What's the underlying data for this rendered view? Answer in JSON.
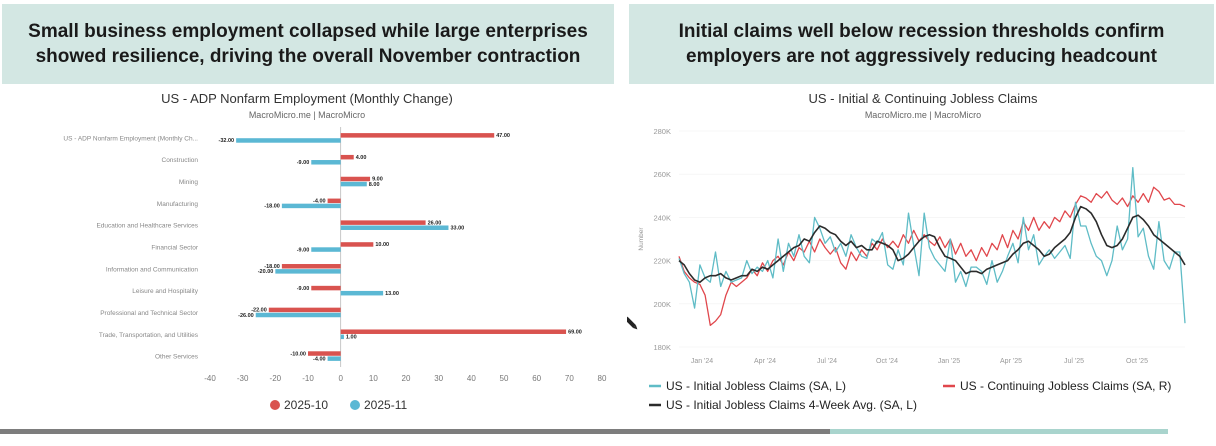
{
  "left": {
    "headline": "Small business employment collapsed while large enterprises\nshowed resilience, driving the overall November contraction",
    "chart_title": "US - ADP Nonfarm Employment (Monthly Change)",
    "source": "MacroMicro.me | MacroMicro"
  },
  "right": {
    "headline": "Initial claims well below recession thresholds confirm\nemployers are not aggressively reducing headcount",
    "chart_title": "US - Initial & Continuing Jobless Claims",
    "source": "MacroMicro.me | MacroMicro"
  },
  "colors": {
    "red": "#d9534f",
    "blue": "#5bb8d4",
    "teal_line": "#5fbcc6",
    "red_line": "#e0474c",
    "dark_line": "#2b2b2b",
    "banner": "#d3e7e3"
  },
  "chart_data": [
    {
      "type": "bar",
      "orientation": "horizontal",
      "title": "US - ADP Nonfarm Employment (Monthly Change)",
      "categories": [
        "US - ADP Nonfarm Employment (Monthly Ch...",
        "Construction",
        "Mining",
        "Manufacturing",
        "Education and Healthcare Services",
        "Financial Sector",
        "Information and Communication",
        "Leisure and Hospitality",
        "Professional and Technical Sector",
        "Trade, Transportation, and Utilities",
        "Other Services"
      ],
      "series": [
        {
          "name": "2025-10",
          "color": "#d9534f",
          "values": [
            47,
            4,
            9,
            -4,
            26,
            10,
            -18,
            -9,
            -22,
            69,
            -10
          ]
        },
        {
          "name": "2025-11",
          "color": "#5bb8d4",
          "values": [
            -32,
            -9,
            8,
            -18,
            33,
            -9,
            -20,
            13,
            -26,
            1,
            -4
          ]
        }
      ],
      "data_labels": [
        [
          "47.00",
          "-32.00"
        ],
        [
          "4.00",
          "-9.00"
        ],
        [
          "9.00",
          "8.00"
        ],
        [
          "-4.00",
          "-18.00"
        ],
        [
          "26.00",
          "33.00"
        ],
        [
          "10.00",
          "-9.00"
        ],
        [
          "-18.00",
          "-20.00"
        ],
        [
          "-9.00",
          "13.00"
        ],
        [
          "-22.00",
          "-26.00"
        ],
        [
          "69.00",
          "1.00"
        ],
        [
          "-10.00",
          "-4.00"
        ]
      ],
      "xlim": [
        -40,
        80
      ],
      "xticks": [
        "-40",
        "-30",
        "-20",
        "-10",
        "0",
        "10",
        "20",
        "30",
        "40",
        "50",
        "60",
        "70",
        "80"
      ],
      "legend_position": "bottom",
      "legend": [
        "2025-10",
        "2025-11"
      ]
    },
    {
      "type": "line",
      "title": "US - Initial & Continuing Jobless Claims",
      "ylabel": "Number",
      "y_left_ticks": [
        "180K",
        "200K",
        "220K",
        "240K",
        "260K",
        "280K"
      ],
      "ylim_left": [
        180000,
        280000
      ],
      "x_ticks": [
        "Jan '24",
        "Apr '24",
        "Jul '24",
        "Oct '24",
        "Jan '25",
        "Apr '25",
        "Jul '25",
        "Oct '25"
      ],
      "x_range": [
        "2023-11",
        "2025-12"
      ],
      "series": [
        {
          "name": "US - Initial Jobless Claims (SA, L)",
          "color": "#5fbcc6",
          "values": [
            221,
            214,
            210,
            198,
            218,
            212,
            210,
            224,
            208,
            215,
            210,
            211,
            212,
            220,
            214,
            217,
            215,
            220,
            212,
            230,
            215,
            228,
            222,
            232,
            222,
            219,
            240,
            235,
            228,
            231,
            224,
            228,
            222,
            232,
            226,
            222,
            221,
            230,
            228,
            233,
            218,
            216,
            225,
            218,
            242,
            227,
            213,
            242,
            226,
            221,
            218,
            215,
            230,
            210,
            215,
            208,
            217,
            217,
            215,
            209,
            220,
            210,
            215,
            222,
            228,
            219,
            240,
            225,
            232,
            218,
            222,
            225,
            221,
            224,
            227,
            221,
            247,
            236,
            236,
            228,
            222,
            220,
            213,
            220,
            236,
            225,
            230,
            263,
            231,
            235,
            222,
            216,
            238,
            220,
            216,
            224,
            224,
            191
          ]
        },
        {
          "name": "US - Initial Jobless Claims 4-Week Avg. (SA, L)",
          "color": "#2b2b2b",
          "values": [
            220,
            218,
            214,
            211,
            210,
            212,
            213,
            213,
            214,
            212,
            211,
            212,
            213,
            213,
            216,
            215,
            217,
            216,
            218,
            220,
            222,
            224,
            226,
            227,
            230,
            229,
            233,
            236,
            235,
            233,
            232,
            229,
            227,
            229,
            226,
            227,
            225,
            225,
            229,
            228,
            227,
            225,
            220,
            221,
            223,
            226,
            229,
            231,
            232,
            231,
            226,
            222,
            221,
            220,
            217,
            214,
            215,
            215,
            214,
            216,
            217,
            218,
            219,
            220,
            223,
            225,
            228,
            229,
            227,
            225,
            222,
            223,
            226,
            228,
            230,
            233,
            240,
            245,
            244,
            242,
            238,
            232,
            227,
            226,
            227,
            230,
            235,
            240,
            241,
            239,
            236,
            232,
            230,
            228,
            226,
            224,
            222,
            218
          ]
        },
        {
          "name": "US - Continuing Jobless Claims (SA, R)",
          "color": "#e0474c",
          "values": [
            222,
            215,
            212,
            210,
            209,
            204,
            190,
            192,
            195,
            204,
            210,
            208,
            210,
            212,
            216,
            213,
            219,
            215,
            220,
            222,
            218,
            224,
            220,
            226,
            224,
            229,
            224,
            230,
            226,
            223,
            226,
            219,
            216,
            224,
            220,
            225,
            222,
            228,
            225,
            230,
            226,
            229,
            226,
            232,
            228,
            234,
            229,
            232,
            229,
            227,
            231,
            226,
            230,
            223,
            228,
            222,
            225,
            220,
            226,
            222,
            228,
            225,
            232,
            226,
            234,
            230,
            238,
            234,
            240,
            234,
            238,
            235,
            240,
            238,
            243,
            240,
            246,
            250,
            249,
            247,
            251,
            249,
            252,
            248,
            246,
            249,
            245,
            250,
            247,
            251,
            247,
            254,
            252,
            248,
            249,
            246,
            246,
            245
          ]
        }
      ],
      "legend": [
        "US - Initial Jobless Claims (SA, L)",
        "US - Continuing Jobless Claims (SA, R)",
        "US - Initial Jobless Claims 4-Week Avg. (SA, L)"
      ],
      "legend_position": "bottom"
    }
  ]
}
